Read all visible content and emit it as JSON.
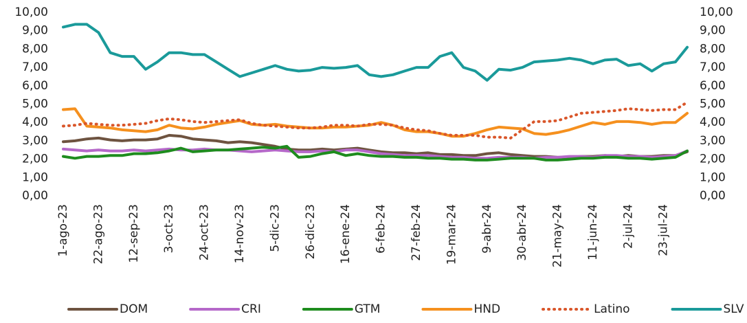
{
  "chart_data": {
    "type": "line",
    "categories": [
      "1-ago-23",
      null,
      null,
      "22-ago-23",
      null,
      null,
      "12-sep-23",
      null,
      null,
      "3-oct-23",
      null,
      null,
      "24-oct-23",
      null,
      null,
      "14-nov-23",
      null,
      null,
      "5-dic-23",
      null,
      null,
      "26-dic-23",
      null,
      null,
      "16-ene-24",
      null,
      null,
      "6-feb-24",
      null,
      null,
      "27-feb-24",
      null,
      null,
      "19-mar-24",
      null,
      null,
      "9-abr-24",
      null,
      null,
      "30-abr-24",
      null,
      null,
      "21-may-24",
      null,
      null,
      "11-jun-24",
      null,
      null,
      "2-jul-24",
      null,
      null,
      "23-jul-24",
      null,
      null
    ],
    "series": [
      {
        "name": "DOM",
        "color": "#6e5340",
        "style": "solid",
        "values": [
          2.95,
          3.0,
          3.1,
          3.15,
          3.05,
          3.0,
          3.05,
          3.05,
          3.1,
          3.3,
          3.25,
          3.1,
          3.05,
          3.0,
          2.9,
          2.95,
          2.9,
          2.8,
          2.7,
          2.55,
          2.5,
          2.5,
          2.55,
          2.5,
          2.55,
          2.6,
          2.5,
          2.4,
          2.35,
          2.35,
          2.3,
          2.35,
          2.25,
          2.25,
          2.2,
          2.2,
          2.3,
          2.35,
          2.25,
          2.2,
          2.15,
          2.15,
          2.1,
          2.1,
          2.15,
          2.15,
          2.2,
          2.15,
          2.2,
          2.15,
          2.15,
          2.2,
          2.2,
          2.4
        ]
      },
      {
        "name": "CRI",
        "color": "#b568c9",
        "style": "solid",
        "values": [
          2.55,
          2.5,
          2.45,
          2.5,
          2.45,
          2.45,
          2.5,
          2.45,
          2.5,
          2.55,
          2.5,
          2.5,
          2.55,
          2.5,
          2.5,
          2.45,
          2.4,
          2.45,
          2.5,
          2.45,
          2.4,
          2.4,
          2.45,
          2.4,
          2.5,
          2.5,
          2.4,
          2.3,
          2.25,
          2.2,
          2.2,
          2.2,
          2.15,
          2.1,
          2.1,
          2.05,
          2.05,
          2.1,
          2.1,
          2.1,
          2.05,
          2.1,
          2.1,
          2.15,
          2.15,
          2.1,
          2.2,
          2.2,
          2.15,
          2.15,
          2.1,
          2.15,
          2.2,
          2.45
        ]
      },
      {
        "name": "GTM",
        "color": "#1e8c1e",
        "style": "solid",
        "values": [
          2.15,
          2.05,
          2.15,
          2.15,
          2.2,
          2.2,
          2.3,
          2.3,
          2.35,
          2.45,
          2.6,
          2.4,
          2.45,
          2.5,
          2.5,
          2.55,
          2.6,
          2.65,
          2.6,
          2.7,
          2.1,
          2.15,
          2.3,
          2.4,
          2.2,
          2.3,
          2.2,
          2.15,
          2.15,
          2.1,
          2.1,
          2.05,
          2.05,
          2.0,
          2.0,
          1.95,
          1.95,
          2.0,
          2.05,
          2.05,
          2.05,
          1.95,
          1.95,
          2.0,
          2.05,
          2.05,
          2.1,
          2.1,
          2.05,
          2.05,
          2.0,
          2.05,
          2.1,
          2.45
        ]
      },
      {
        "name": "HND",
        "color": "#f5901e",
        "style": "solid",
        "values": [
          4.7,
          4.75,
          3.8,
          3.75,
          3.7,
          3.6,
          3.55,
          3.5,
          3.6,
          3.85,
          3.7,
          3.65,
          3.75,
          3.9,
          4.0,
          4.1,
          3.9,
          3.85,
          3.9,
          3.8,
          3.75,
          3.7,
          3.7,
          3.75,
          3.75,
          3.8,
          3.85,
          4.0,
          3.85,
          3.6,
          3.5,
          3.5,
          3.4,
          3.25,
          3.25,
          3.4,
          3.6,
          3.75,
          3.7,
          3.65,
          3.4,
          3.35,
          3.45,
          3.6,
          3.8,
          4.0,
          3.9,
          4.05,
          4.05,
          4.0,
          3.9,
          4.0,
          4.0,
          4.5
        ]
      },
      {
        "name": "Latino",
        "color": "#d9562a",
        "style": "dotted",
        "values": [
          3.8,
          3.85,
          3.95,
          3.9,
          3.85,
          3.85,
          3.9,
          3.95,
          4.1,
          4.2,
          4.15,
          4.05,
          4.0,
          4.05,
          4.1,
          4.15,
          3.95,
          3.85,
          3.8,
          3.75,
          3.7,
          3.7,
          3.75,
          3.85,
          3.85,
          3.8,
          3.9,
          3.9,
          3.85,
          3.7,
          3.6,
          3.55,
          3.4,
          3.3,
          3.3,
          3.3,
          3.2,
          3.2,
          3.15,
          3.6,
          4.05,
          4.05,
          4.1,
          4.3,
          4.5,
          4.55,
          4.6,
          4.65,
          4.75,
          4.7,
          4.65,
          4.7,
          4.7,
          5.1
        ]
      },
      {
        "name": "SLV",
        "color": "#1a9a9a",
        "style": "solid",
        "values": [
          9.2,
          9.35,
          9.35,
          8.9,
          7.8,
          7.6,
          7.6,
          6.9,
          7.3,
          7.8,
          7.8,
          7.7,
          7.7,
          7.3,
          6.9,
          6.5,
          6.7,
          6.9,
          7.1,
          6.9,
          6.8,
          6.85,
          7.0,
          6.95,
          7.0,
          7.1,
          6.6,
          6.5,
          6.6,
          6.8,
          7.0,
          7.0,
          7.6,
          7.8,
          7.0,
          6.8,
          6.3,
          6.9,
          6.85,
          7.0,
          7.3,
          7.35,
          7.4,
          7.5,
          7.4,
          7.2,
          7.4,
          7.45,
          7.1,
          7.2,
          6.8,
          7.2,
          7.3,
          8.1
        ]
      }
    ],
    "ylim": [
      0,
      10
    ],
    "yticks": [
      {
        "value": 0,
        "label": "0,00"
      },
      {
        "value": 1,
        "label": "1,00"
      },
      {
        "value": 2,
        "label": "2,00"
      },
      {
        "value": 3,
        "label": "3,00"
      },
      {
        "value": 4,
        "label": "4,00"
      },
      {
        "value": 5,
        "label": "5,00"
      },
      {
        "value": 6,
        "label": "6,00"
      },
      {
        "value": 7,
        "label": "7,00"
      },
      {
        "value": 8,
        "label": "8,00"
      },
      {
        "value": 9,
        "label": "9,00"
      },
      {
        "value": 10,
        "label": "10,00"
      }
    ],
    "y2lim": [
      0,
      10
    ],
    "y2ticks": [
      {
        "value": 0,
        "label": "0,00"
      },
      {
        "value": 1,
        "label": "1,00"
      },
      {
        "value": 2,
        "label": "2,00"
      },
      {
        "value": 3,
        "label": "3,00"
      },
      {
        "value": 4,
        "label": "4,00"
      },
      {
        "value": 5,
        "label": "5,00"
      },
      {
        "value": 6,
        "label": "6,00"
      },
      {
        "value": 7,
        "label": "7,00"
      },
      {
        "value": 8,
        "label": "8,00"
      },
      {
        "value": 9,
        "label": "9,00"
      },
      {
        "value": 10,
        "label": "10,00"
      }
    ],
    "legend": "bottom"
  }
}
